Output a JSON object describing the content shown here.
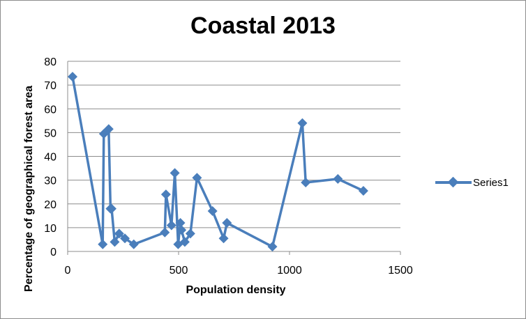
{
  "chart_data": {
    "type": "scatter",
    "title": "Coastal 2013",
    "xlabel": "Population density",
    "ylabel": "Percentage of geographical forest area",
    "xlim": [
      0,
      1500
    ],
    "ylim": [
      0,
      80
    ],
    "x_ticks": [
      "0",
      "500",
      "1000",
      "1500"
    ],
    "y_ticks": [
      "0",
      "10",
      "20",
      "30",
      "40",
      "50",
      "60",
      "70",
      "80"
    ],
    "grid": "horizontal",
    "legend": "right",
    "series": [
      {
        "name": "Series1",
        "color": "#4a7ebb",
        "x": [
          22,
          158,
          163,
          185,
          193,
          198,
          212,
          232,
          258,
          298,
          438,
          443,
          468,
          483,
          498,
          508,
          513,
          528,
          553,
          583,
          653,
          703,
          718,
          923,
          1058,
          1073,
          1218,
          1333
        ],
        "y": [
          73.5,
          3,
          49.5,
          51.5,
          18,
          18,
          4,
          7.5,
          5.5,
          3,
          8,
          24,
          11,
          33,
          3,
          12,
          9,
          4,
          7.5,
          31,
          17,
          5.5,
          12,
          2,
          54,
          29,
          30.5,
          25.5
        ]
      }
    ]
  }
}
